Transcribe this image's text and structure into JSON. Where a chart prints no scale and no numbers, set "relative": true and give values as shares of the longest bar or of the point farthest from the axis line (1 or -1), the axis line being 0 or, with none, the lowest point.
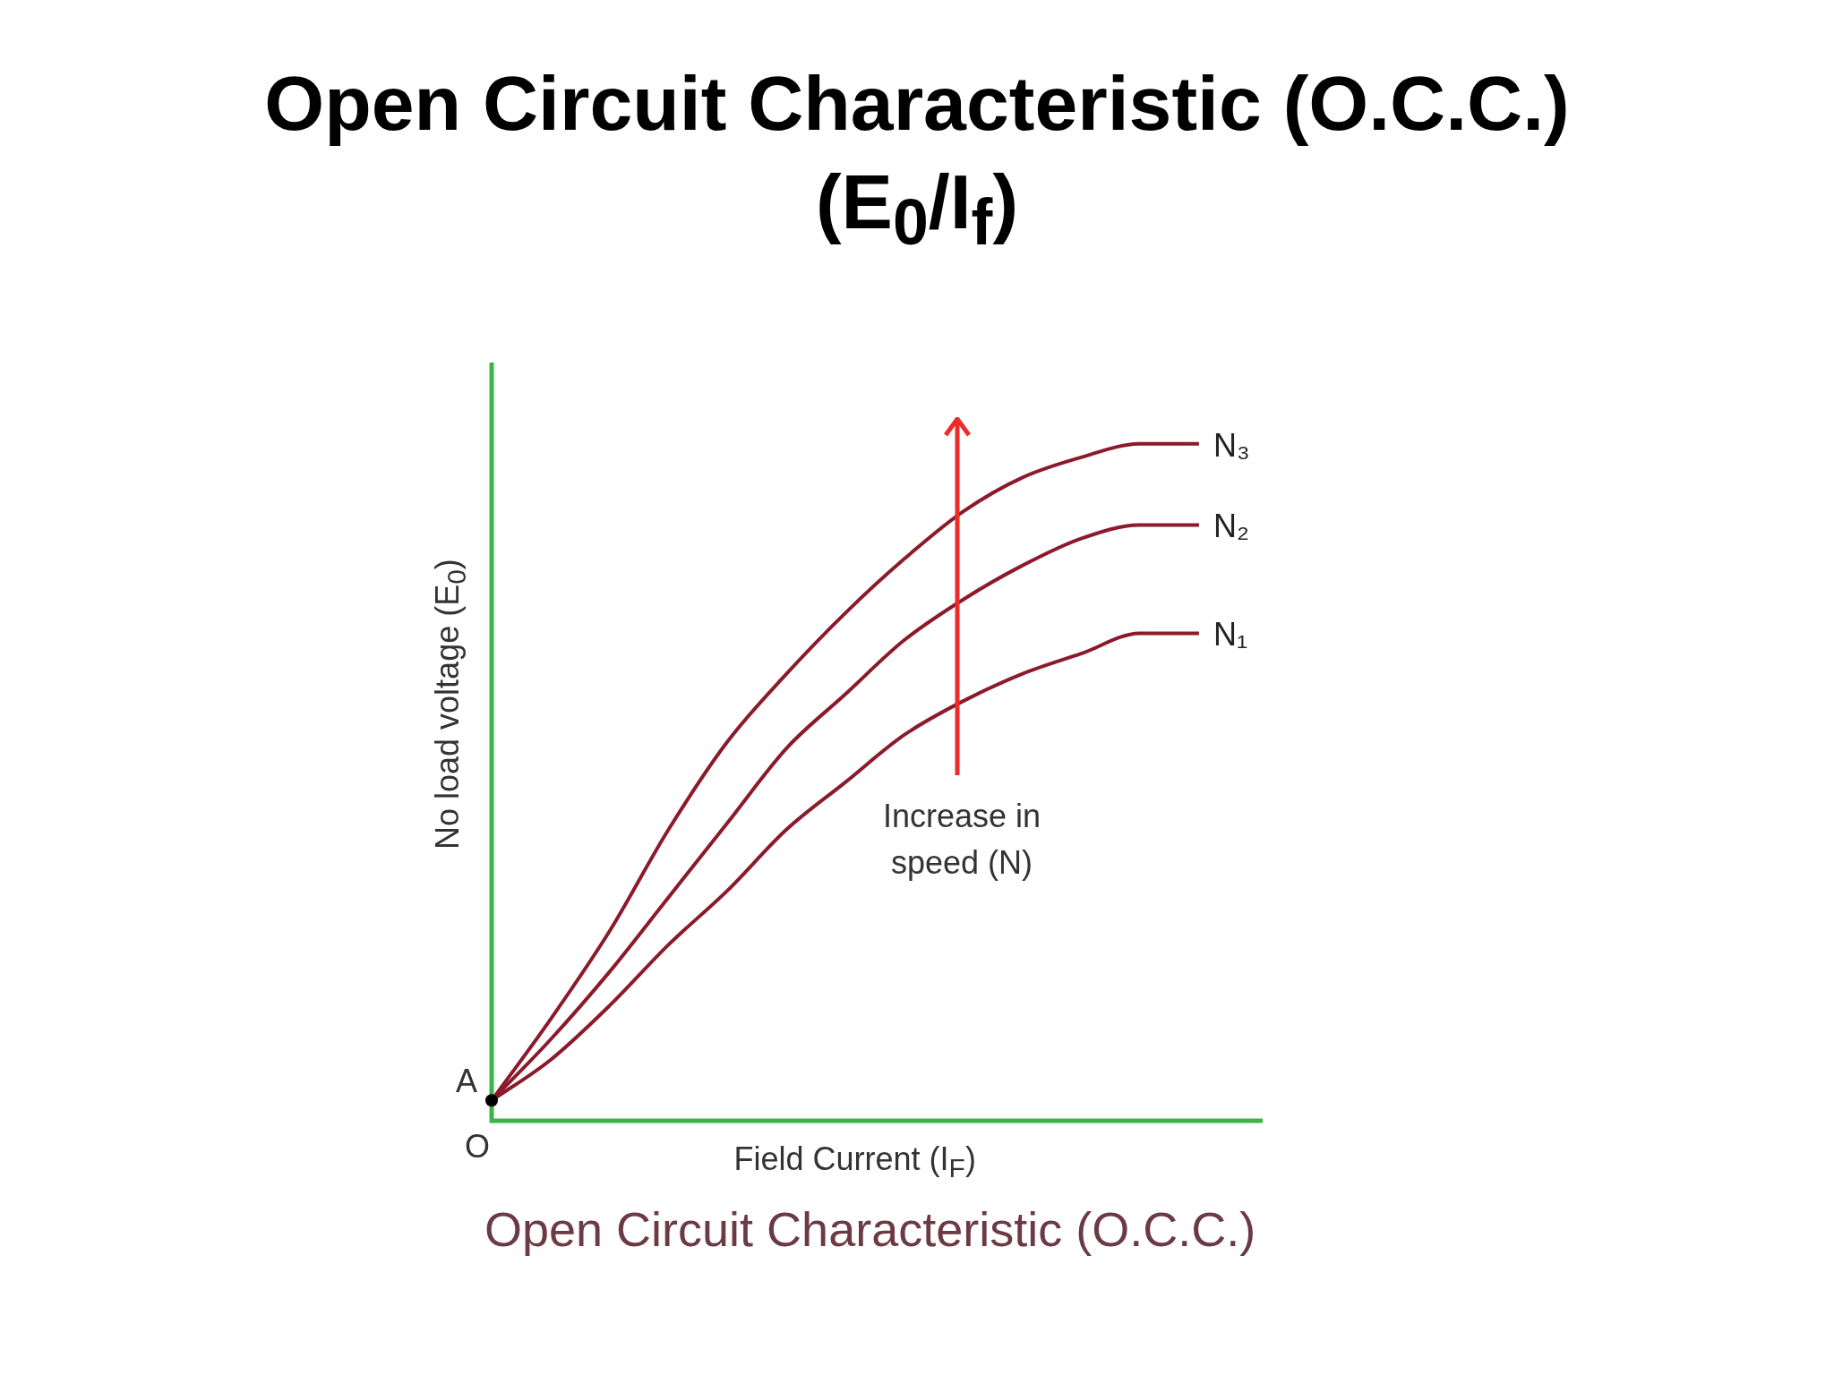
{
  "chart_data": {
    "type": "line",
    "title": "Open Circuit Characteristic (O.C.C.) (E$_{0}$/I$_{f}$)",
    "xlabel": "Field Current (I$_{F}$)",
    "ylabel": "No load voltage (E$_{0}$)",
    "relative": true,
    "tick_labels": false,
    "annotations": [
      "A",
      "O",
      "Increase in speed (N)",
      "Open Circuit Characteristic (O.C.C.)"
    ],
    "categories": [
      null,
      null,
      null,
      null,
      null,
      null,
      null,
      null,
      null,
      null,
      null,
      null,
      null
    ],
    "series": [
      {
        "name": "N₁",
        "color": "#8b1a2b",
        "values": [
          0.03,
          0.09,
          0.17,
          0.26,
          0.34,
          0.43,
          0.5,
          0.57,
          0.62,
          0.66,
          0.69,
          0.72,
          0.72
        ]
      },
      {
        "name": "N₂",
        "color": "#8b1a2b",
        "values": [
          0.03,
          0.12,
          0.22,
          0.33,
          0.44,
          0.55,
          0.63,
          0.71,
          0.77,
          0.82,
          0.86,
          0.88,
          0.88
        ]
      },
      {
        "name": "N₃",
        "color": "#8b1a2b",
        "values": [
          0.03,
          0.15,
          0.28,
          0.43,
          0.56,
          0.66,
          0.75,
          0.83,
          0.9,
          0.95,
          0.98,
          1.0,
          1.0
        ]
      }
    ]
  }
}
